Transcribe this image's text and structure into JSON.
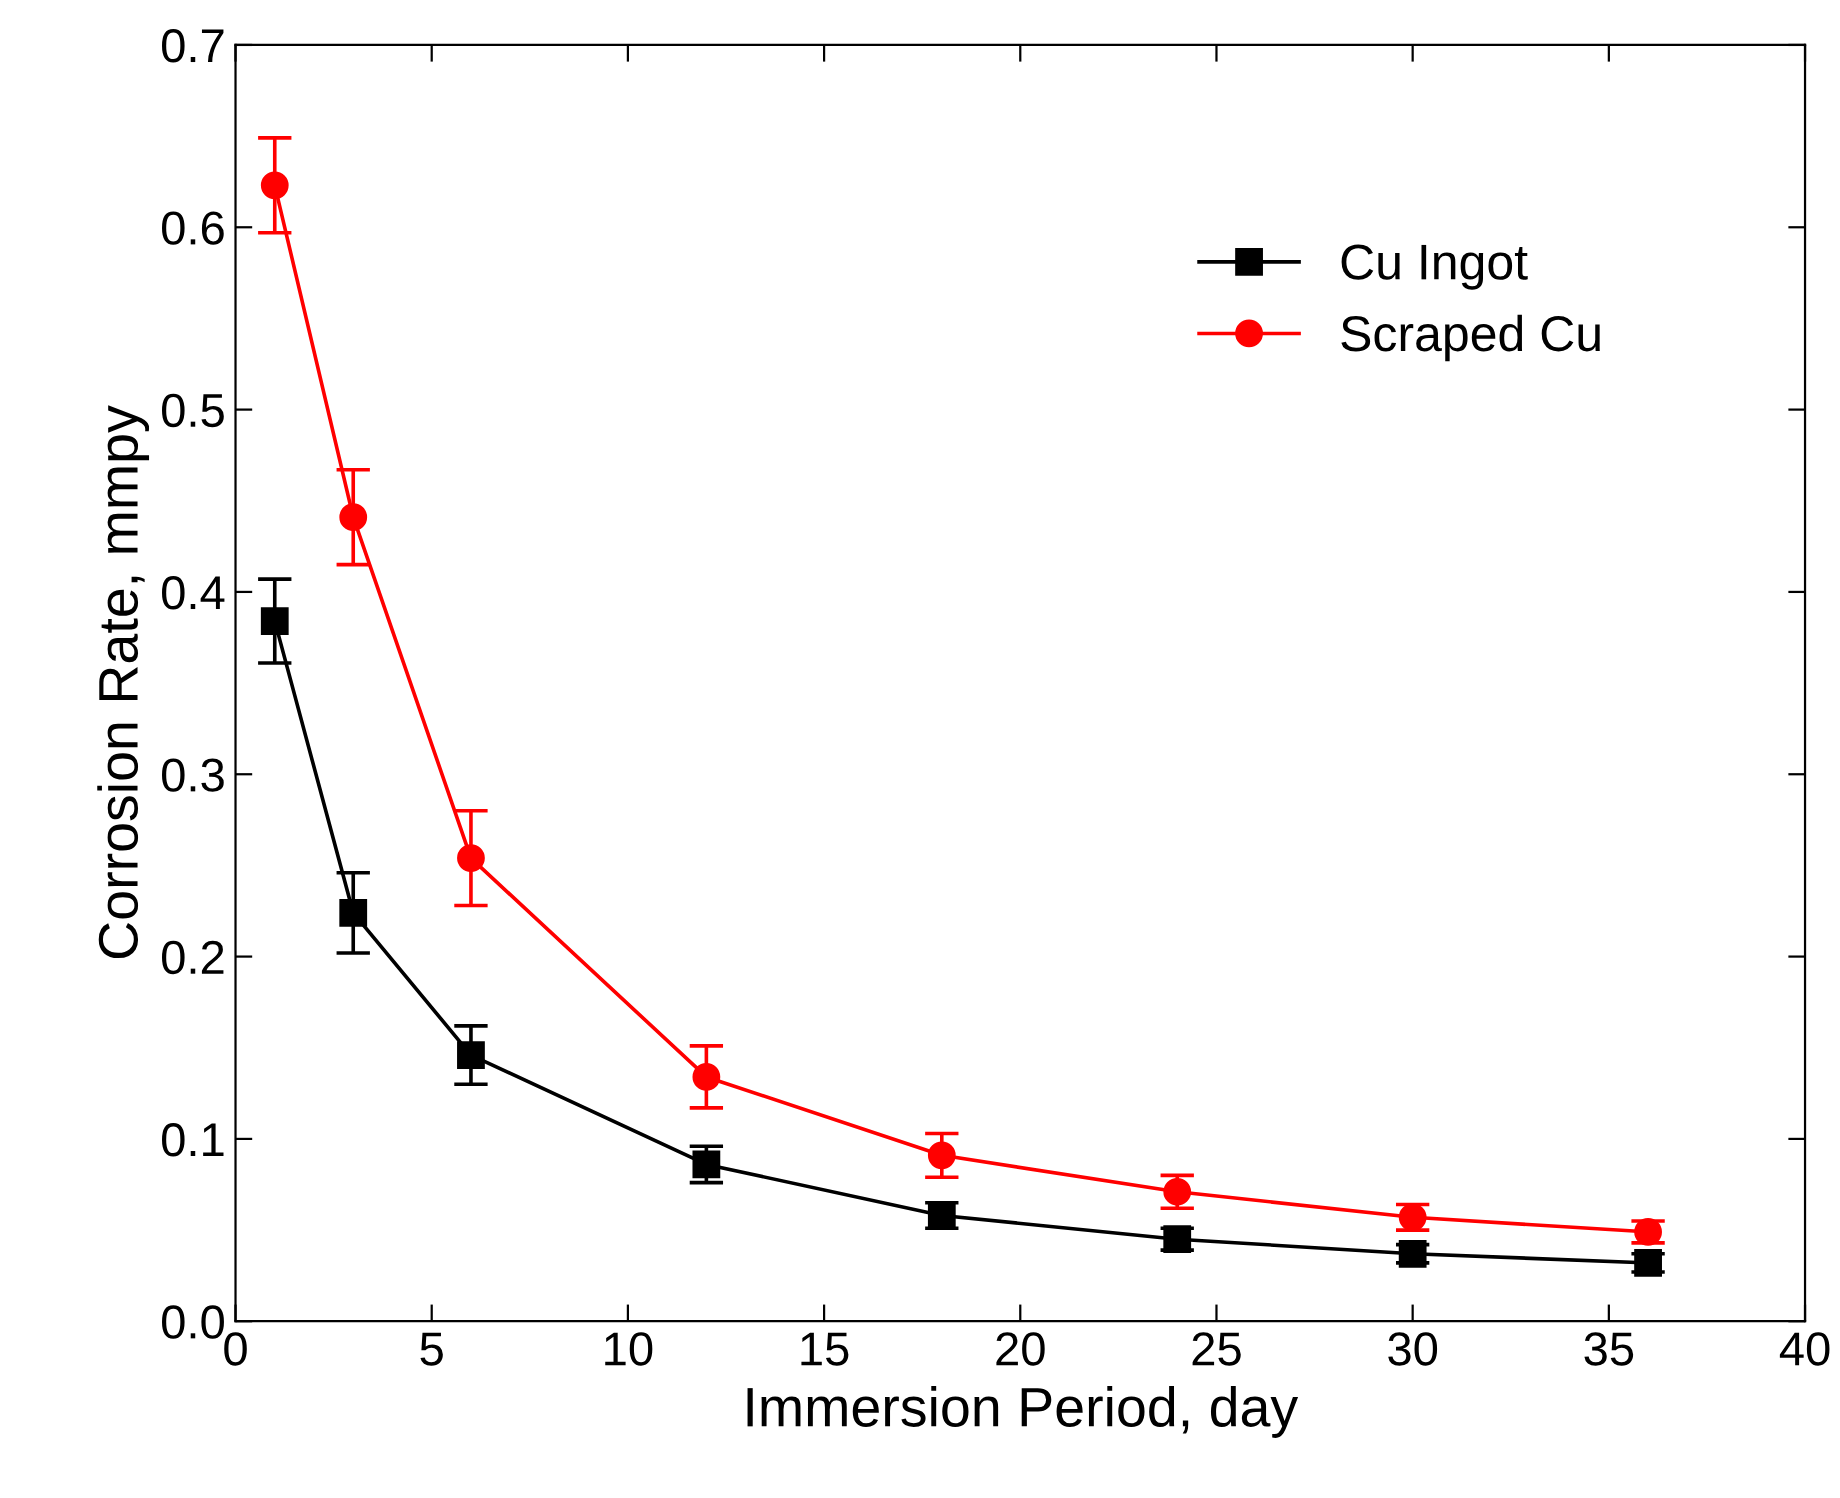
{
  "chart_data": {
    "type": "line",
    "xlabel": "Immersion Period, day",
    "ylabel": "Corrosion Rate, mmpy",
    "x": [
      1,
      3,
      6,
      12,
      18,
      24,
      30,
      36
    ],
    "series": [
      {
        "name": "Cu Ingot",
        "color": "#000000",
        "marker": "square",
        "values": [
          0.384,
          0.224,
          0.146,
          0.086,
          0.058,
          0.045,
          0.037,
          0.032
        ],
        "errors": [
          0.023,
          0.022,
          0.016,
          0.01,
          0.007,
          0.006,
          0.005,
          0.005
        ]
      },
      {
        "name": "Scraped Cu",
        "color": "#ff0000",
        "marker": "circle",
        "values": [
          0.623,
          0.441,
          0.254,
          0.134,
          0.091,
          0.071,
          0.057,
          0.049
        ],
        "errors": [
          0.026,
          0.026,
          0.026,
          0.017,
          0.012,
          0.009,
          0.007,
          0.006
        ]
      }
    ],
    "xlim": [
      0,
      40
    ],
    "xticks": [
      0,
      5,
      10,
      15,
      20,
      25,
      30,
      35,
      40
    ],
    "ylim": [
      0,
      0.7
    ],
    "yticks": [
      {
        "value": 0,
        "label": "0.0"
      },
      0.1,
      0.2,
      0.3,
      0.4,
      0.5,
      0.6,
      0.7
    ],
    "legend": "top right",
    "grid": false,
    "line_style": "solid"
  }
}
